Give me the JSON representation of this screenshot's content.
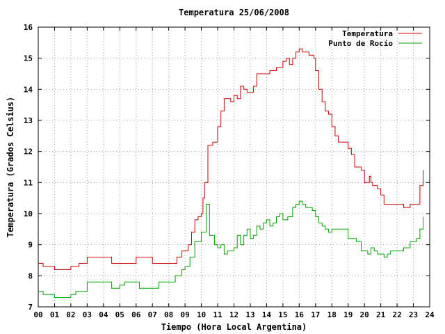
{
  "chart_data": {
    "type": "line",
    "title": "Temperatura 25/06/2008",
    "xlabel": "Tiempo (Hora Local Argentina)",
    "ylabel": "Temperatura (Grados Celsius)",
    "xlim": [
      0,
      24
    ],
    "ylim": [
      7,
      16
    ],
    "xticks": [
      "00",
      "01",
      "02",
      "03",
      "04",
      "05",
      "06",
      "07",
      "08",
      "09",
      "10",
      "11",
      "12",
      "13",
      "14",
      "15",
      "16",
      "17",
      "18",
      "19",
      "20",
      "21",
      "22",
      "23",
      "24"
    ],
    "yticks": [
      "7",
      "8",
      "9",
      "10",
      "11",
      "12",
      "13",
      "14",
      "15",
      "16"
    ],
    "grid": true,
    "legend_position": "top-right",
    "series": [
      {
        "name": "Temperatura",
        "color": "#cc0000",
        "x": [
          0,
          0.2,
          0.3,
          0.6,
          1.0,
          1.1,
          2.0,
          2.5,
          3.0,
          3.4,
          4.0,
          4.5,
          5.0,
          5.2,
          6.0,
          6.2,
          7.0,
          7.5,
          8.0,
          8.3,
          8.5,
          8.8,
          9.0,
          9.2,
          9.4,
          9.6,
          9.8,
          10.0,
          10.1,
          10.2,
          10.4,
          10.7,
          10.9,
          11.0,
          11.2,
          11.4,
          11.6,
          11.8,
          12.0,
          12.2,
          12.4,
          12.6,
          12.8,
          13.0,
          13.2,
          13.4,
          13.6,
          14.0,
          14.2,
          14.4,
          14.6,
          14.8,
          15.0,
          15.2,
          15.4,
          15.6,
          15.8,
          16.0,
          16.2,
          16.4,
          16.6,
          16.9,
          17.0,
          17.2,
          17.4,
          17.6,
          17.8,
          18.0,
          18.2,
          18.4,
          18.6,
          18.8,
          19.0,
          19.2,
          19.4,
          19.6,
          19.8,
          20.0,
          20.3,
          20.4,
          20.5,
          20.6,
          20.8,
          21.0,
          21.2,
          21.4,
          21.6,
          22.0,
          22.3,
          22.4,
          22.8,
          23.0,
          23.2,
          23.4,
          23.6
        ],
        "values": [
          8.4,
          8.4,
          8.3,
          8.3,
          8.2,
          8.2,
          8.3,
          8.4,
          8.6,
          8.6,
          8.6,
          8.4,
          8.4,
          8.4,
          8.6,
          8.6,
          8.4,
          8.4,
          8.4,
          8.4,
          8.6,
          8.8,
          8.8,
          9.0,
          9.4,
          9.8,
          9.9,
          10.0,
          10.5,
          11.0,
          12.2,
          12.3,
          12.3,
          12.8,
          13.3,
          13.7,
          13.7,
          13.6,
          13.8,
          13.7,
          14.1,
          14.0,
          13.9,
          13.9,
          14.1,
          14.5,
          14.5,
          14.5,
          14.6,
          14.6,
          14.7,
          14.7,
          14.9,
          15.0,
          14.8,
          15.0,
          15.2,
          15.3,
          15.2,
          15.2,
          15.1,
          15.0,
          14.6,
          14.0,
          13.6,
          13.3,
          13.2,
          12.8,
          12.5,
          12.3,
          12.3,
          12.3,
          12.1,
          11.9,
          11.5,
          11.5,
          11.4,
          11.0,
          11.2,
          11.0,
          10.9,
          10.9,
          10.8,
          10.6,
          10.3,
          10.3,
          10.3,
          10.3,
          10.3,
          10.2,
          10.3,
          10.3,
          10.3,
          10.9,
          11.4
        ]
      },
      {
        "name": "Punto de Rocío",
        "color": "#00a000",
        "x": [
          0,
          0.3,
          0.6,
          1.0,
          1.4,
          2.0,
          2.3,
          3.0,
          3.5,
          4.0,
          4.5,
          5.0,
          5.3,
          6.0,
          6.2,
          7.0,
          7.4,
          8.0,
          8.4,
          8.6,
          8.8,
          9.0,
          9.3,
          9.6,
          10.0,
          10.3,
          10.5,
          10.8,
          11.0,
          11.2,
          11.4,
          11.6,
          11.8,
          12.0,
          12.2,
          12.4,
          12.6,
          12.8,
          13.0,
          13.2,
          13.4,
          13.6,
          13.8,
          14.0,
          14.2,
          14.4,
          14.6,
          14.8,
          15.0,
          15.3,
          15.6,
          15.8,
          16.0,
          16.2,
          16.4,
          16.8,
          17.0,
          17.2,
          17.4,
          17.6,
          17.8,
          18.0,
          18.5,
          19.0,
          19.5,
          19.8,
          20.2,
          20.4,
          20.6,
          20.8,
          21.0,
          21.2,
          21.4,
          21.6,
          22.0,
          22.4,
          22.8,
          23.0,
          23.2,
          23.4,
          23.6
        ],
        "values": [
          7.5,
          7.4,
          7.4,
          7.3,
          7.3,
          7.4,
          7.5,
          7.8,
          7.8,
          7.8,
          7.6,
          7.7,
          7.8,
          7.8,
          7.6,
          7.6,
          7.8,
          7.8,
          8.0,
          8.0,
          8.2,
          8.3,
          8.6,
          9.1,
          9.4,
          10.3,
          9.3,
          9.0,
          8.9,
          9.0,
          8.7,
          8.8,
          8.8,
          8.9,
          9.3,
          9.0,
          9.3,
          9.5,
          9.2,
          9.3,
          9.6,
          9.5,
          9.7,
          9.8,
          9.6,
          9.7,
          9.9,
          10.0,
          9.8,
          9.9,
          10.2,
          10.3,
          10.4,
          10.3,
          10.2,
          10.1,
          9.9,
          9.7,
          9.6,
          9.5,
          9.4,
          9.5,
          9.5,
          9.2,
          9.1,
          8.8,
          8.7,
          8.9,
          8.8,
          8.7,
          8.7,
          8.6,
          8.7,
          8.8,
          8.8,
          8.9,
          9.1,
          9.1,
          9.2,
          9.5,
          9.9
        ]
      }
    ]
  }
}
